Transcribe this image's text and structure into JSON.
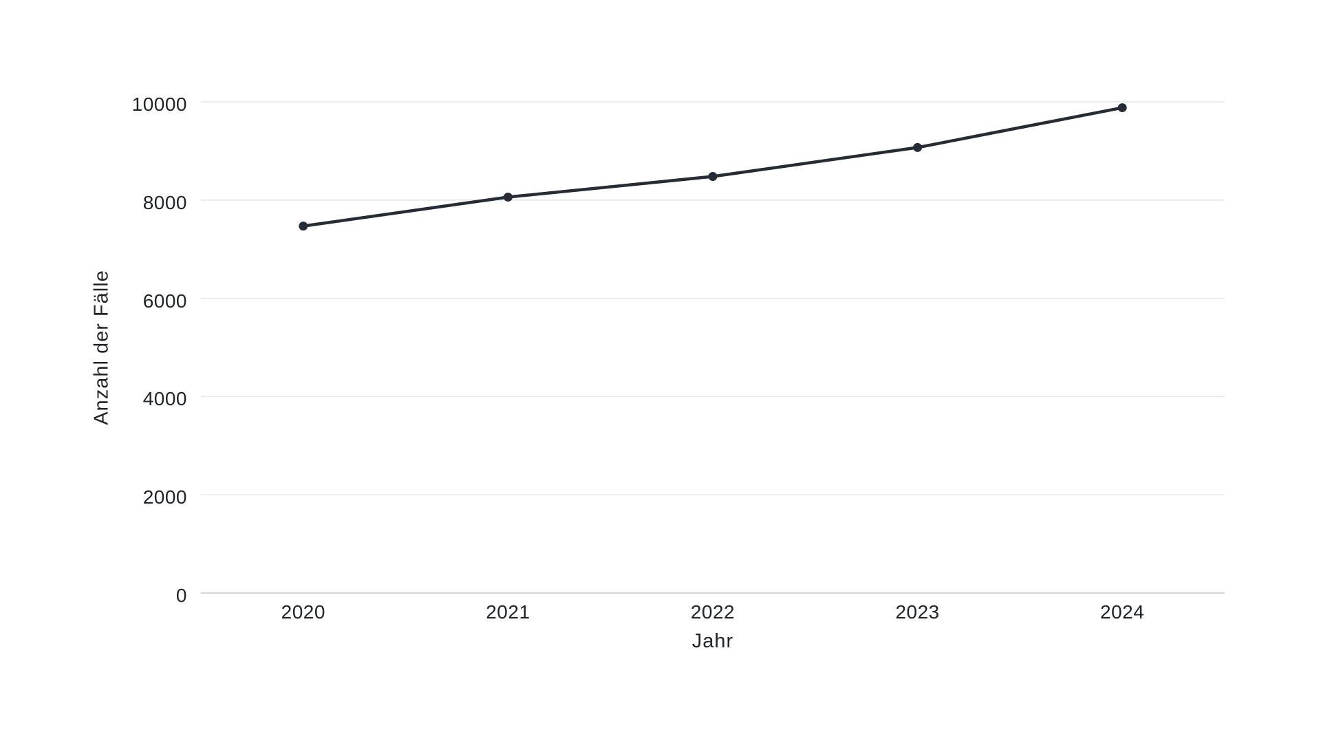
{
  "background_color": "#ffffff",
  "chart_data": {
    "type": "line",
    "title": "",
    "xlabel": "Jahr",
    "ylabel": "Anzahl der Fälle",
    "categories": [
      "2020",
      "2021",
      "2022",
      "2023",
      "2024"
    ],
    "series": [
      {
        "name": "Anzahl der Fälle",
        "values": [
          7470,
          8060,
          8480,
          9070,
          9880
        ]
      }
    ],
    "ylim": [
      0,
      10000
    ],
    "yticks": [
      0,
      2000,
      4000,
      6000,
      8000,
      10000
    ],
    "grid": "horizontal-only",
    "legend_position": "none",
    "marker": "circle",
    "colors": {
      "line": "#262c35",
      "marker": "#262c35",
      "gridline": "#e5e5e5",
      "zero_axis_line": "#c9c9c9",
      "text": "#20242b"
    }
  }
}
